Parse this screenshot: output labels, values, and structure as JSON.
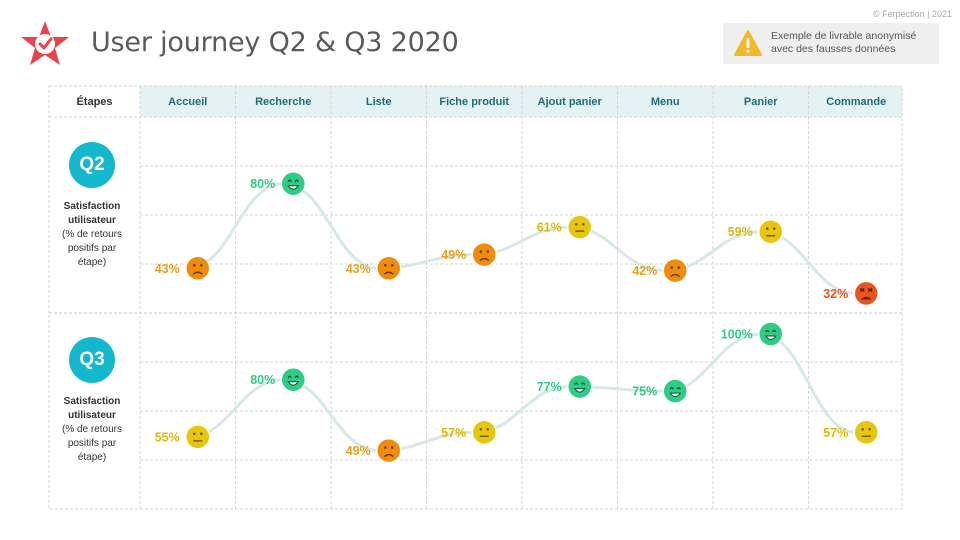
{
  "header": {
    "title": "User journey Q2 & Q3 2020",
    "copyright": "© Ferpection | 2021",
    "notice": "Exemple de livrable anonymisé\navec des fausses données"
  },
  "colors": {
    "positive": "#2ecc85",
    "neutral": "#e8c60e",
    "neutral_text": "#e0b70c",
    "negative": "#ef8c0a",
    "negative_text": "#e8a020",
    "very_negative": "#e8541d",
    "header_bg": "#e5f2f4",
    "badge": "#13b8cc",
    "curve": "#d6e8ea"
  },
  "rows": [
    {
      "badge": "Q2",
      "title": "Satisfaction\nutilisateur",
      "desc": "(% de retours\npositifs par\nétape)"
    },
    {
      "badge": "Q3",
      "title": "Satisfaction\nutilisateur",
      "desc": "(% de retours\npositifs par\nétape)"
    }
  ],
  "chart_data": {
    "type": "line",
    "first_column_header": "Étapes",
    "categories": [
      "Accueil",
      "Recherche",
      "Liste",
      "Fiche produit",
      "Ajout panier",
      "Menu",
      "Panier",
      "Commande"
    ],
    "unit": "%",
    "series": [
      {
        "name": "Q2",
        "values": [
          43,
          80,
          43,
          49,
          61,
          42,
          59,
          32
        ],
        "labels": [
          "43%",
          "80%",
          "43%",
          "49%",
          "61%",
          "42%",
          "59%",
          "32%"
        ],
        "moods": [
          "sad",
          "happy",
          "sad",
          "sad",
          "neutral",
          "sad",
          "neutral",
          "angry"
        ]
      },
      {
        "name": "Q3",
        "values": [
          55,
          80,
          49,
          57,
          77,
          75,
          100,
          57
        ],
        "labels": [
          "55%",
          "80%",
          "49%",
          "57%",
          "77%",
          "75%",
          "100%",
          "57%"
        ],
        "moods": [
          "neutral",
          "happy",
          "sad",
          "neutral",
          "happy",
          "happy",
          "happy",
          "neutral"
        ]
      }
    ]
  }
}
